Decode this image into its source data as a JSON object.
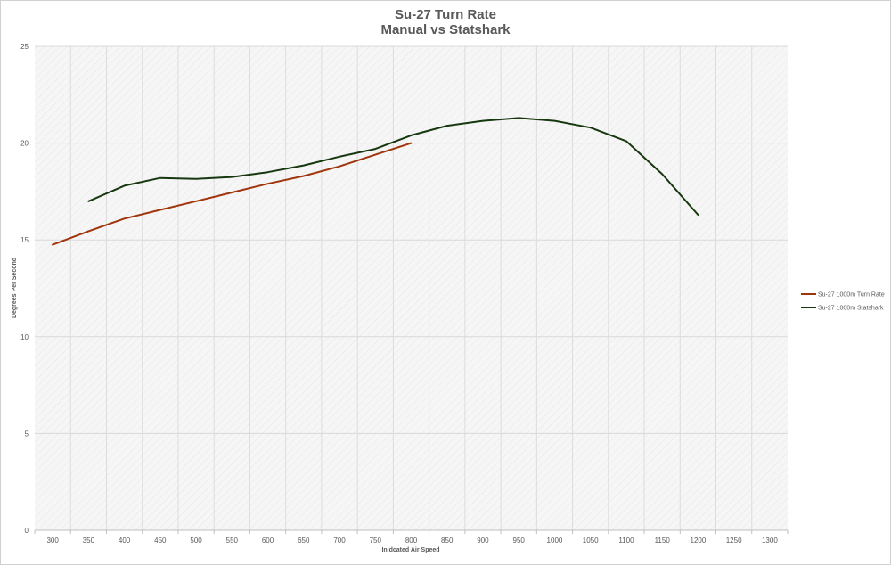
{
  "chart_data": {
    "type": "line",
    "title": "Su-27 Turn Rate",
    "subtitle": "Manual vs Statshark",
    "xlabel": "Inidcated Air Speed",
    "ylabel": "Degrees Per Second",
    "x_categories": [
      "300",
      "350",
      "400",
      "450",
      "500",
      "550",
      "600",
      "650",
      "700",
      "750",
      "800",
      "850",
      "900",
      "950",
      "1000",
      "1050",
      "1100",
      "1150",
      "1200",
      "1250",
      "1300"
    ],
    "y_ticks": [
      "0",
      "5",
      "10",
      "15",
      "20",
      "25"
    ],
    "ylim": [
      0,
      25
    ],
    "grid": true,
    "legend_position": "right",
    "series": [
      {
        "name": "Su-27 1000m Turn Rate",
        "color": "#a0350c",
        "x": [
          300,
          350,
          400,
          450,
          500,
          550,
          600,
          650,
          700,
          750,
          800
        ],
        "y": [
          14.75,
          15.45,
          16.1,
          16.55,
          17.0,
          17.45,
          17.9,
          18.3,
          18.8,
          19.4,
          20.0
        ]
      },
      {
        "name": "Su-27 1000m Statshark",
        "color": "#17380f",
        "x": [
          350,
          400,
          450,
          500,
          550,
          600,
          650,
          700,
          750,
          800,
          850,
          900,
          950,
          1000,
          1050,
          1100,
          1150,
          1200
        ],
        "y": [
          17.0,
          17.8,
          18.2,
          18.15,
          18.25,
          18.5,
          18.85,
          19.3,
          19.7,
          20.4,
          20.9,
          21.15,
          21.3,
          21.15,
          20.8,
          20.1,
          18.4,
          16.3
        ]
      }
    ]
  }
}
